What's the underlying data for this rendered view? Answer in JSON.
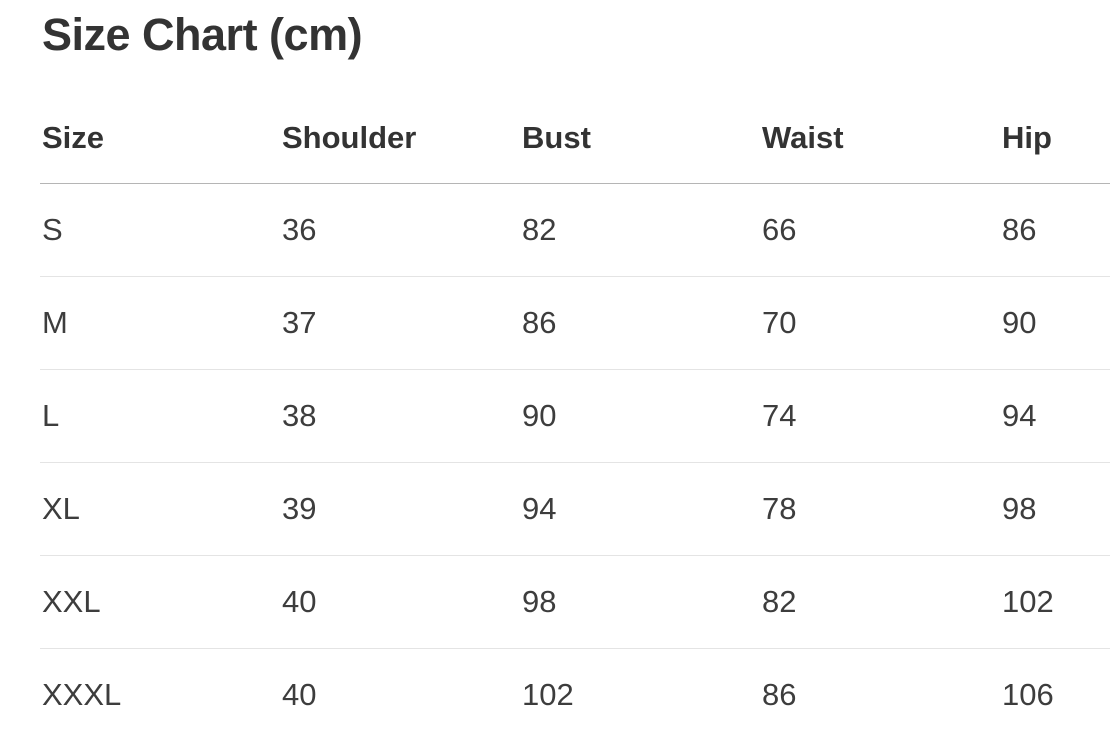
{
  "page": {
    "title": "Size Chart (cm)",
    "unit": "cm"
  },
  "size_table": {
    "columns": [
      "Size",
      "Shoulder",
      "Bust",
      "Waist",
      "Hip"
    ],
    "rows": [
      [
        "S",
        "36",
        "82",
        "66",
        "86"
      ],
      [
        "M",
        "37",
        "86",
        "70",
        "90"
      ],
      [
        "L",
        "38",
        "90",
        "74",
        "94"
      ],
      [
        "XL",
        "39",
        "94",
        "78",
        "98"
      ],
      [
        "XXL",
        "40",
        "98",
        "82",
        "102"
      ],
      [
        "XXXL",
        "40",
        "102",
        "86",
        "106"
      ]
    ]
  },
  "colors": {
    "background": "#ffffff",
    "title_text": "#333333",
    "header_text": "#333333",
    "cell_text": "#3d3d3d",
    "header_divider": "#b5b5b5",
    "row_divider": "#e4e4e4"
  }
}
